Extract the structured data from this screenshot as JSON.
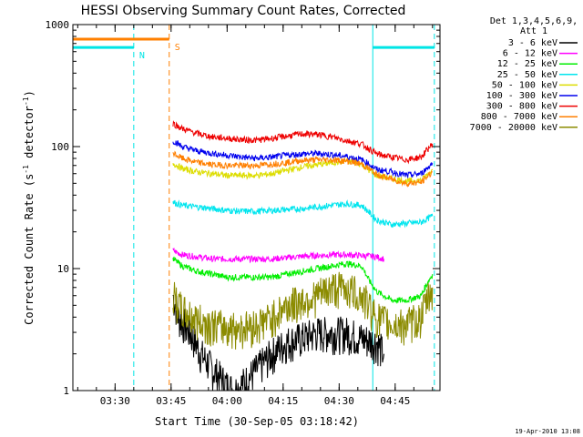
{
  "chart_data": {
    "type": "line",
    "title": "HESSI Observing Summary Count Rates, Corrected",
    "xlabel": "Start Time (30-Sep-05 03:18:42)",
    "ylabel_main": "Corrected Count Rate (s",
    "ylabel_sup1": "-1",
    "ylabel_mid": " detector",
    "ylabel_sup2": "-1",
    "ylabel_end": ")",
    "y_scale": "log",
    "ylim": [
      1,
      1000
    ],
    "xlim": [
      "03:18:42",
      "04:57:00"
    ],
    "x_ticks": [
      "03:30",
      "03:45",
      "04:00",
      "04:15",
      "04:30",
      "04:45"
    ],
    "y_ticks": [
      "1",
      "10",
      "100",
      "1000"
    ],
    "legend_header": [
      "Det 1,3,4,5,6,9,",
      "Att 1"
    ],
    "legend_position": "right, outside plot",
    "timestamp": "19-Apr-2010 13:08",
    "flags": [
      {
        "label": "N",
        "start": "03:18:42",
        "end": "03:35:00",
        "level": 650,
        "color": "#00e5e5"
      },
      {
        "label": "N",
        "start": "04:39:00",
        "end": "04:55:30",
        "level": 650,
        "color": "#00e5e5"
      },
      {
        "label": "S",
        "start": "03:18:42",
        "end": "03:44:30",
        "level": 760,
        "color": "#ff7f00"
      }
    ],
    "series": [
      {
        "name": "3 - 6 keV",
        "color": "#000000",
        "x": [
          "03:45:30",
          "03:47:00",
          "03:50:00",
          "03:53:00",
          "03:56:00",
          "03:58:00",
          "04:00:00",
          "04:02:00",
          "04:05:00",
          "04:08:00",
          "04:12:00",
          "04:16:00",
          "04:20:00",
          "04:24:00",
          "04:28:00",
          "04:32:00",
          "04:36:00",
          "04:40:00",
          "04:42:00"
        ],
        "y": [
          6.0,
          4.0,
          3.0,
          2.0,
          1.5,
          1.3,
          1.1,
          1.0,
          1.2,
          1.5,
          2.0,
          2.5,
          2.7,
          3.0,
          3.0,
          3.0,
          2.7,
          2.5,
          2.0
        ]
      },
      {
        "name": "6 - 12 keV",
        "color": "#ff00ff",
        "x": [
          "03:45:30",
          "03:48:00",
          "03:52:00",
          "03:56:00",
          "04:00:00",
          "04:04:00",
          "04:08:00",
          "04:12:00",
          "04:16:00",
          "04:20:00",
          "04:24:00",
          "04:28:00",
          "04:32:00",
          "04:36:00",
          "04:40:00",
          "04:42:00"
        ],
        "y": [
          14,
          13,
          12.5,
          12,
          12,
          12,
          12,
          12,
          12.3,
          12.6,
          12.8,
          13,
          13,
          12.8,
          12.5,
          12
        ]
      },
      {
        "name": "12 - 25 keV",
        "color": "#00ee00",
        "x": [
          "03:45:30",
          "03:48:00",
          "03:52:00",
          "03:56:00",
          "04:00:00",
          "04:04:00",
          "04:08:00",
          "04:12:00",
          "04:16:00",
          "04:20:00",
          "04:24:00",
          "04:28:00",
          "04:32:00",
          "04:36:00",
          "04:38:00",
          "04:40:00",
          "04:44:00",
          "04:48:00",
          "04:52:00",
          "04:55:00"
        ],
        "y": [
          12,
          10.5,
          9.5,
          9,
          8.5,
          8.5,
          8.5,
          8.5,
          9,
          9.5,
          10,
          10.5,
          11,
          10.5,
          8,
          6.5,
          5.5,
          5.5,
          6,
          9
        ]
      },
      {
        "name": "25 - 50 keV",
        "color": "#00e5ee",
        "x": [
          "03:45:30",
          "03:48:00",
          "03:52:00",
          "03:56:00",
          "04:00:00",
          "04:04:00",
          "04:08:00",
          "04:12:00",
          "04:16:00",
          "04:20:00",
          "04:24:00",
          "04:28:00",
          "04:32:00",
          "04:36:00",
          "04:38:00",
          "04:40:00",
          "04:44:00",
          "04:48:00",
          "04:52:00",
          "04:55:00"
        ],
        "y": [
          35,
          33,
          32,
          31,
          30,
          29.5,
          29.5,
          30,
          30.5,
          31,
          32,
          33,
          34,
          33,
          29,
          25,
          23,
          23.5,
          24,
          27
        ]
      },
      {
        "name": "50 - 100 keV",
        "color": "#dddd00",
        "x": [
          "03:45:30",
          "03:48:00",
          "03:52:00",
          "03:56:00",
          "04:00:00",
          "04:04:00",
          "04:08:00",
          "04:12:00",
          "04:16:00",
          "04:20:00",
          "04:24:00",
          "04:28:00",
          "04:32:00",
          "04:36:00",
          "04:38:00",
          "04:40:00",
          "04:44:00",
          "04:48:00",
          "04:52:00",
          "04:55:00"
        ],
        "y": [
          73,
          66,
          62,
          60,
          58,
          58,
          58,
          60,
          64,
          68,
          71,
          74,
          76,
          72,
          64,
          58,
          55,
          52,
          53,
          64
        ]
      },
      {
        "name": "100 - 300 keV",
        "color": "#0000ee",
        "x": [
          "03:45:30",
          "03:48:00",
          "03:52:00",
          "03:56:00",
          "04:00:00",
          "04:04:00",
          "04:08:00",
          "04:12:00",
          "04:16:00",
          "04:20:00",
          "04:24:00",
          "04:28:00",
          "04:32:00",
          "04:36:00",
          "04:38:00",
          "04:40:00",
          "04:44:00",
          "04:48:00",
          "04:52:00",
          "04:55:00"
        ],
        "y": [
          112,
          100,
          92,
          88,
          85,
          82,
          80,
          82,
          85,
          87,
          88,
          86,
          83,
          78,
          72,
          65,
          62,
          58,
          60,
          73
        ]
      },
      {
        "name": "300 - 800 keV",
        "color": "#ee0000",
        "x": [
          "03:45:30",
          "03:48:00",
          "03:52:00",
          "03:56:00",
          "04:00:00",
          "04:04:00",
          "04:08:00",
          "04:12:00",
          "04:16:00",
          "04:20:00",
          "04:24:00",
          "04:28:00",
          "04:32:00",
          "04:36:00",
          "04:38:00",
          "04:40:00",
          "04:44:00",
          "04:48:00",
          "04:52:00",
          "04:55:00"
        ],
        "y": [
          155,
          140,
          128,
          120,
          117,
          114,
          113,
          117,
          122,
          127,
          126,
          120,
          112,
          105,
          96,
          87,
          82,
          78,
          82,
          105
        ]
      },
      {
        "name": "800 - 7000 keV",
        "color": "#ff7f00",
        "x": [
          "03:45:30",
          "03:48:00",
          "03:52:00",
          "03:56:00",
          "04:00:00",
          "04:04:00",
          "04:08:00",
          "04:12:00",
          "04:16:00",
          "04:20:00",
          "04:24:00",
          "04:28:00",
          "04:32:00",
          "04:36:00",
          "04:38:00",
          "04:40:00",
          "04:44:00",
          "04:48:00",
          "04:52:00",
          "04:55:00"
        ],
        "y": [
          88,
          80,
          74,
          71,
          70,
          70,
          70,
          72,
          74,
          77,
          78,
          78,
          76,
          72,
          66,
          59,
          54,
          50,
          51,
          62
        ]
      },
      {
        "name": "7000 - 20000 keV",
        "color": "#8b8b00",
        "x": [
          "03:45:30",
          "03:48:00",
          "03:52:00",
          "03:56:00",
          "04:00:00",
          "04:04:00",
          "04:08:00",
          "04:12:00",
          "04:16:00",
          "04:20:00",
          "04:24:00",
          "04:28:00",
          "04:32:00",
          "04:36:00",
          "04:38:00",
          "04:40:00",
          "04:44:00",
          "04:48:00",
          "04:52:00",
          "04:55:00"
        ],
        "y": [
          6,
          4.5,
          3.8,
          3.5,
          3.3,
          3.3,
          3.5,
          4,
          5,
          5.5,
          6,
          7,
          7,
          6,
          5,
          4,
          3.5,
          3.5,
          4,
          7
        ]
      }
    ]
  }
}
